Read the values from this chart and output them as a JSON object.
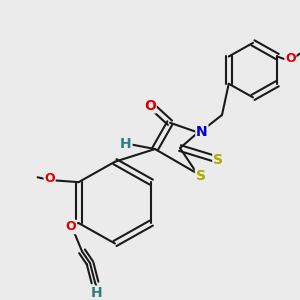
{
  "bg_color": "#ebebeb",
  "bond_color": "#1a1a1a",
  "bond_lw": 1.5,
  "dbo": 0.01,
  "atom_colors": {
    "O": "#dd0000",
    "N": "#0000cc",
    "S": "#aaaa00",
    "H": "#2e8080"
  },
  "fs": 9,
  "figsize": [
    3.0,
    3.0
  ],
  "dpi": 100
}
